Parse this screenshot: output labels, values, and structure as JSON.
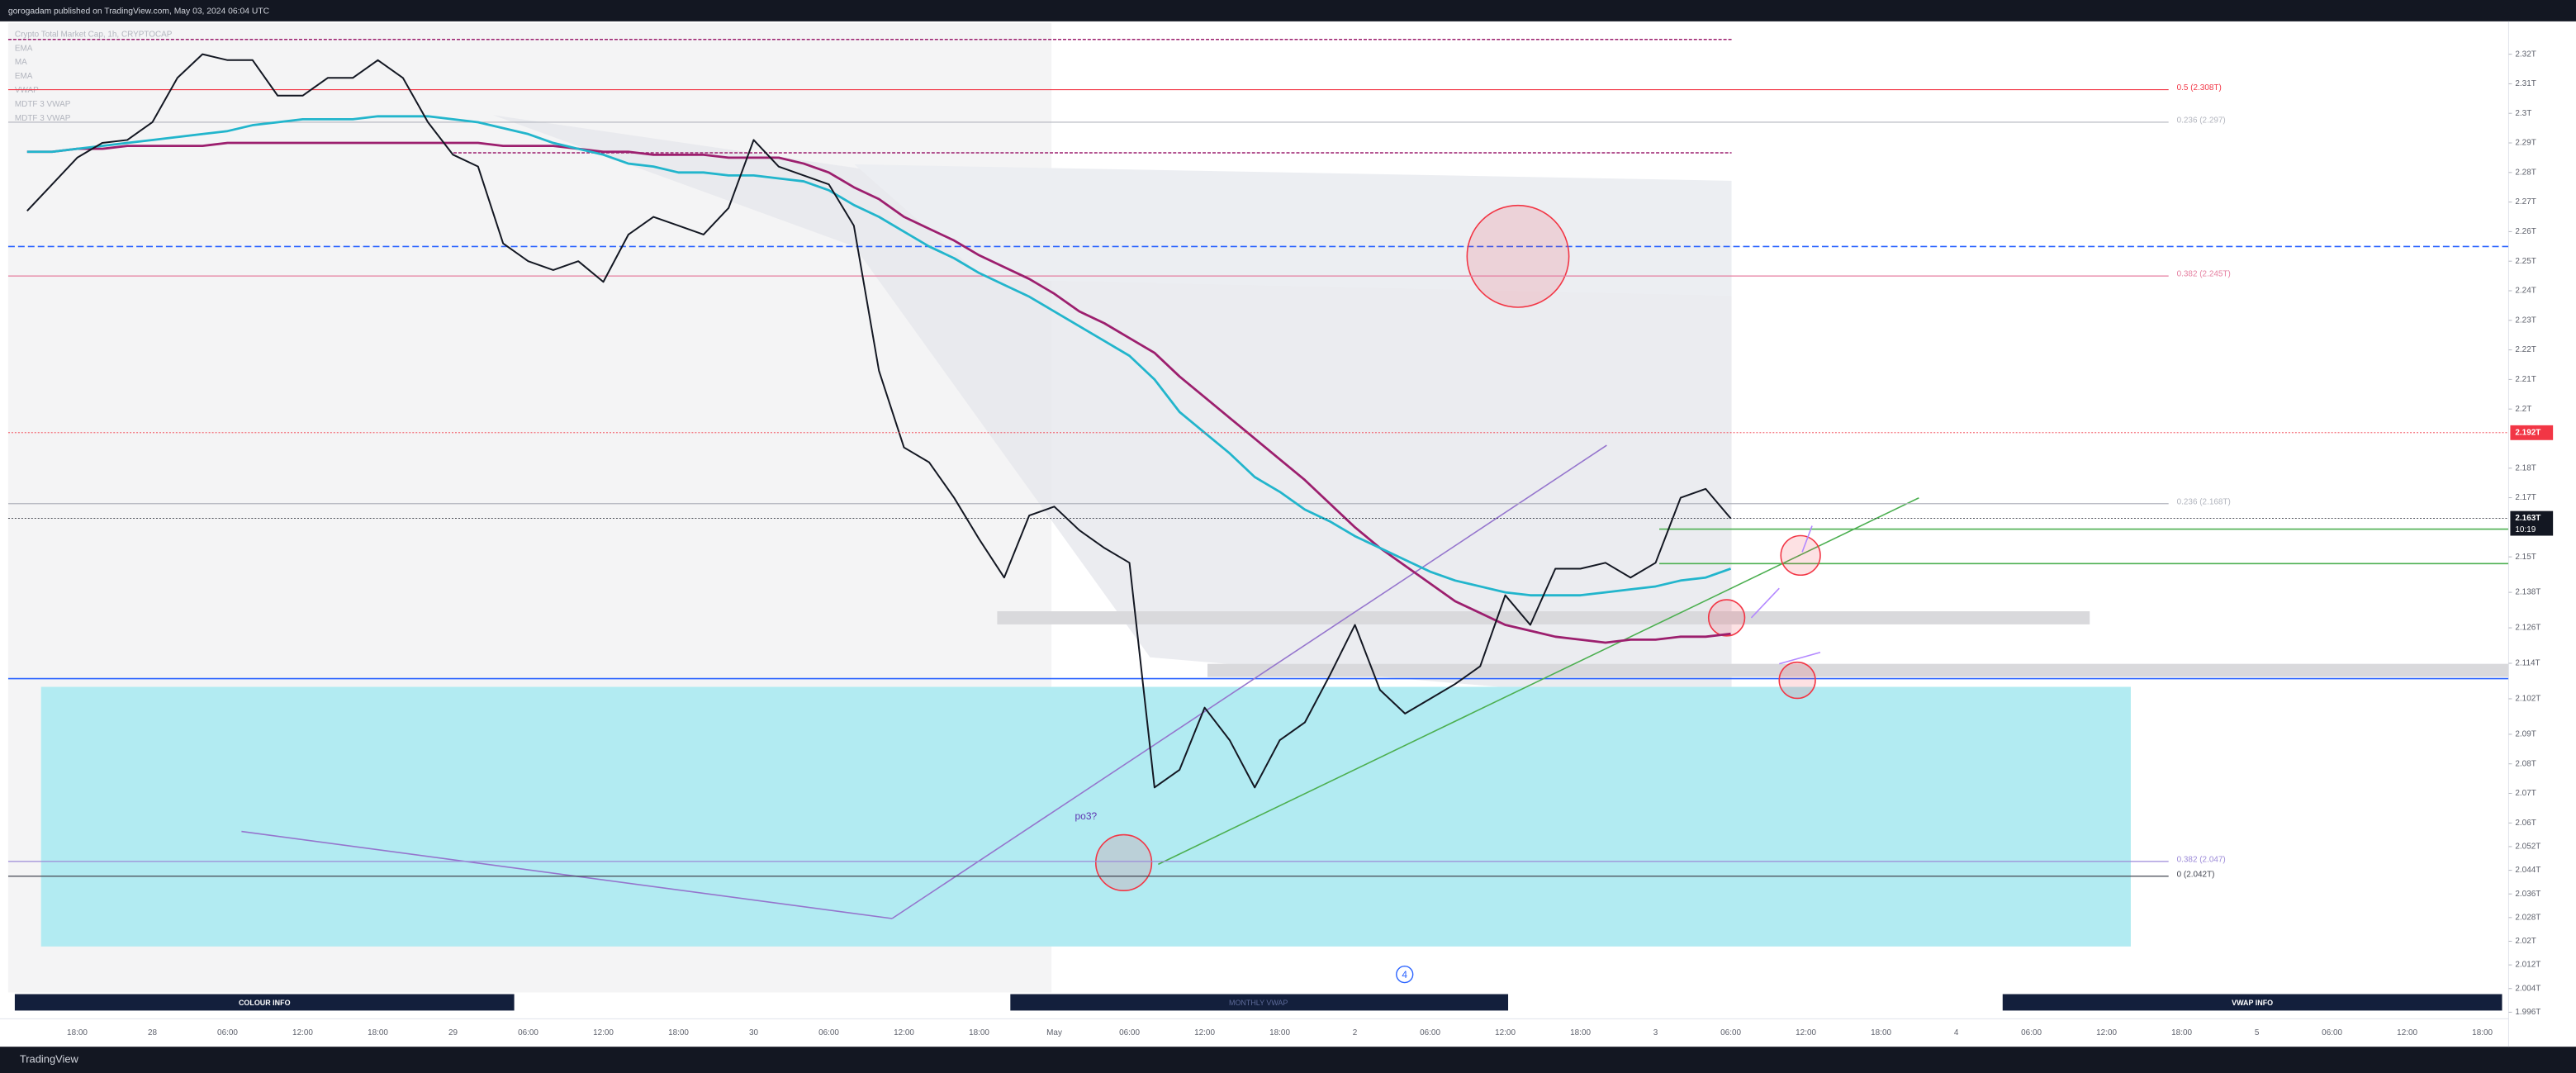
{
  "page": {
    "header": "gorogadam published on TradingView.com, May 03, 2024 06:04 UTC",
    "footer": "TradingView",
    "legend": [
      "Crypto Total Market Cap, 1h, CRYPTOCAP",
      "EMA",
      "MA",
      "EMA",
      "VWAP",
      "MDTF 3 VWAP",
      "MDTF 3 VWAP"
    ],
    "buttons": [
      "COLOUR INFO",
      "MONTHLY VWAP",
      "VWAP INFO"
    ],
    "note": "po3?",
    "marker": "4"
  },
  "chart_data": {
    "type": "line",
    "categories": [
      null,
      null,
      "18:00",
      null,
      null,
      "28",
      null,
      null,
      "06:00",
      null,
      null,
      "12:00",
      null,
      null,
      "18:00",
      null,
      null,
      "29",
      null,
      null,
      "06:00",
      null,
      null,
      "12:00",
      null,
      null,
      "18:00",
      null,
      null,
      "30",
      null,
      null,
      "06:00",
      null,
      null,
      "12:00",
      null,
      null,
      "18:00",
      null,
      null,
      "May",
      null,
      null,
      "06:00",
      null,
      null,
      "12:00",
      null,
      null,
      "18:00",
      null,
      null,
      "2",
      null,
      null,
      "06:00",
      null,
      null,
      "12:00",
      null,
      null,
      "18:00",
      null,
      null,
      "3",
      null,
      null,
      "06:00",
      null,
      null,
      "12:00",
      null,
      null,
      "18:00",
      null,
      null,
      "4",
      null,
      null,
      "06:00",
      null,
      null,
      "12:00",
      null,
      null,
      "18:00",
      null,
      null,
      "5",
      null,
      null,
      "06:00",
      null,
      null,
      "12:00",
      null,
      null,
      "18:00",
      null
    ],
    "series": [
      {
        "name": "Crypto Total Market Cap",
        "color": "#131722",
        "values": [
          2.267,
          2.276,
          2.285,
          2.29,
          2.291,
          2.297,
          2.312,
          2.32,
          2.318,
          2.318,
          2.306,
          2.306,
          2.312,
          2.312,
          2.318,
          2.312,
          2.297,
          2.286,
          2.282,
          2.256,
          2.25,
          2.247,
          2.25,
          2.243,
          2.259,
          2.265,
          2.262,
          2.259,
          2.268,
          2.291,
          2.282,
          2.279,
          2.276,
          2.262,
          2.213,
          2.187,
          2.182,
          2.17,
          2.156,
          2.143,
          2.164,
          2.167,
          2.159,
          2.153,
          2.148,
          2.072,
          2.078,
          2.099,
          2.088,
          2.072,
          2.088,
          2.094,
          2.11,
          2.127,
          2.105,
          2.097,
          2.102,
          2.107,
          2.113,
          2.137,
          2.127,
          2.146,
          2.146,
          2.148,
          2.143,
          2.148,
          2.17,
          2.173,
          2.163,
          null,
          null,
          null,
          null,
          null,
          null,
          null,
          null,
          null,
          null,
          null,
          null,
          null,
          null,
          null,
          null,
          null,
          null,
          null,
          null,
          null,
          null,
          null,
          null,
          null,
          null,
          null,
          null,
          null,
          null,
          null
        ]
      },
      {
        "name": "MA",
        "color": "#22b5cc",
        "values": [
          2.287,
          2.287,
          2.288,
          2.289,
          2.29,
          2.291,
          2.292,
          2.293,
          2.294,
          2.296,
          2.297,
          2.298,
          2.298,
          2.298,
          2.299,
          2.299,
          2.299,
          2.298,
          2.297,
          2.295,
          2.293,
          2.29,
          2.288,
          2.286,
          2.283,
          2.282,
          2.28,
          2.28,
          2.279,
          2.279,
          2.278,
          2.277,
          2.274,
          2.269,
          2.265,
          2.26,
          2.255,
          2.251,
          2.246,
          2.242,
          2.238,
          2.233,
          2.228,
          2.223,
          2.218,
          2.21,
          2.199,
          2.192,
          2.185,
          2.177,
          2.172,
          2.166,
          2.162,
          2.157,
          2.153,
          2.149,
          2.145,
          2.142,
          2.14,
          2.138,
          2.137,
          2.137,
          2.137,
          2.138,
          2.139,
          2.14,
          2.142,
          2.143,
          2.146,
          null,
          null,
          null,
          null,
          null,
          null,
          null,
          null,
          null,
          null,
          null,
          null,
          null,
          null,
          null,
          null,
          null,
          null,
          null,
          null,
          null,
          null,
          null,
          null,
          null,
          null,
          null,
          null,
          null,
          null,
          null
        ]
      },
      {
        "name": "EMA",
        "color": "#9c1f6e",
        "values": [
          2.287,
          2.287,
          2.288,
          2.288,
          2.289,
          2.289,
          2.289,
          2.289,
          2.29,
          2.29,
          2.29,
          2.29,
          2.29,
          2.29,
          2.29,
          2.29,
          2.29,
          2.29,
          2.29,
          2.289,
          2.289,
          2.289,
          2.288,
          2.287,
          2.287,
          2.286,
          2.286,
          2.286,
          2.285,
          2.285,
          2.285,
          2.283,
          2.28,
          2.275,
          2.271,
          2.265,
          2.261,
          2.257,
          2.252,
          2.248,
          2.244,
          2.239,
          2.233,
          2.229,
          2.224,
          2.219,
          2.211,
          2.204,
          2.197,
          2.19,
          2.183,
          2.176,
          2.168,
          2.16,
          2.153,
          2.147,
          2.141,
          2.135,
          2.131,
          2.127,
          2.125,
          2.123,
          2.122,
          2.121,
          2.122,
          2.122,
          2.123,
          2.123,
          2.124,
          null,
          null,
          null,
          null,
          null,
          null,
          null,
          null,
          null,
          null,
          null,
          null,
          null,
          null,
          null,
          null,
          null,
          null,
          null,
          null,
          null,
          null,
          null,
          null,
          null,
          null,
          null,
          null,
          null,
          null,
          null
        ]
      }
    ],
    "ylim": [
      1.996,
      2.33
    ],
    "yticks": [
      {
        "value": 2.32,
        "label": "2.32T"
      },
      {
        "value": 2.31,
        "label": "2.31T"
      },
      {
        "value": 2.3,
        "label": "2.3T"
      },
      {
        "value": 2.29,
        "label": "2.29T"
      },
      {
        "value": 2.28,
        "label": "2.28T"
      },
      {
        "value": 2.27,
        "label": "2.27T"
      },
      {
        "value": 2.26,
        "label": "2.26T"
      },
      {
        "value": 2.25,
        "label": "2.25T"
      },
      {
        "value": 2.24,
        "label": "2.24T"
      },
      {
        "value": 2.23,
        "label": "2.23T"
      },
      {
        "value": 2.22,
        "label": "2.22T"
      },
      {
        "value": 2.21,
        "label": "2.21T"
      },
      {
        "value": 2.2,
        "label": "2.2T"
      },
      {
        "value": 2.18,
        "label": "2.18T"
      },
      {
        "value": 2.17,
        "label": "2.17T"
      },
      {
        "value": 2.15,
        "label": "2.15T"
      },
      {
        "value": 2.138,
        "label": "2.138T"
      },
      {
        "value": 2.126,
        "label": "2.126T"
      },
      {
        "value": 2.114,
        "label": "2.114T"
      },
      {
        "value": 2.102,
        "label": "2.102T"
      },
      {
        "value": 2.09,
        "label": "2.09T"
      },
      {
        "value": 2.08,
        "label": "2.08T"
      },
      {
        "value": 2.07,
        "label": "2.07T"
      },
      {
        "value": 2.06,
        "label": "2.06T"
      },
      {
        "value": 2.052,
        "label": "2.052T"
      },
      {
        "value": 2.044,
        "label": "2.044T"
      },
      {
        "value": 2.036,
        "label": "2.036T"
      },
      {
        "value": 2.028,
        "label": "2.028T"
      },
      {
        "value": 2.02,
        "label": "2.02T"
      },
      {
        "value": 2.012,
        "label": "2.012T"
      },
      {
        "value": 2.004,
        "label": "2.004T"
      },
      {
        "value": 1.996,
        "label": "1.996T"
      }
    ],
    "levels": [
      {
        "label": "0.5 (2.308T)",
        "value": 2.308,
        "color": "#f23645"
      },
      {
        "label": "0.236 (2.297)",
        "value": 2.297,
        "color": "#b2b5be"
      },
      {
        "label": "0.382 (2.245T)",
        "value": 2.245,
        "color": "#e57fa0"
      },
      {
        "label": "0.236 (2.168T)",
        "value": 2.168,
        "color": "#b2b5be"
      },
      {
        "label": "0 (2.042T)",
        "value": 2.042,
        "color": "#434651"
      },
      {
        "label": "0.382 (2.047)",
        "value": 2.047,
        "color": "#9c8ad8"
      }
    ],
    "alert": {
      "label": "2.192T",
      "value": 2.192,
      "color": "#f23645"
    },
    "last": {
      "label": "2.163T",
      "value": 2.163,
      "time": "10:19",
      "color": "#131722"
    }
  }
}
